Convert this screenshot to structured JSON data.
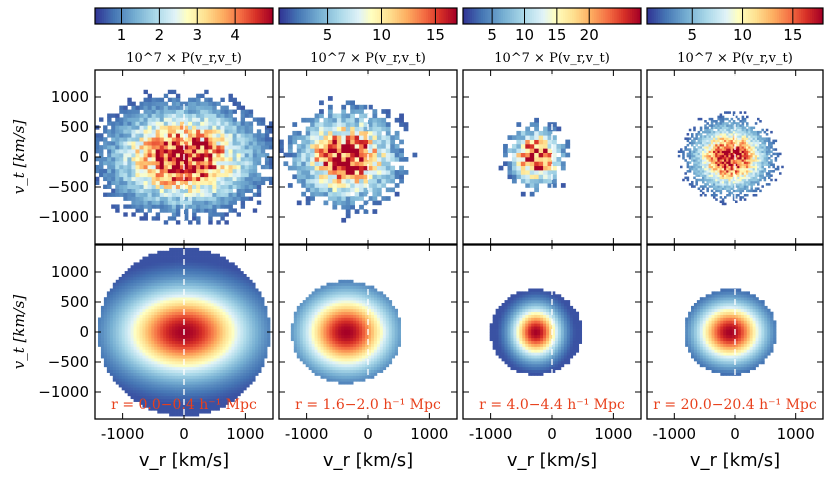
{
  "figure": {
    "xlabel": "v_r  [km/s]",
    "ylabel": "v_t  [km/s]",
    "colorbar_title": "10^7  × P(v_r,v_t)",
    "x_ticks": [
      "-1000",
      "0",
      "1000"
    ],
    "y_ticks": [
      "1000",
      "500",
      "0",
      "−500",
      "−1000"
    ],
    "x_tick_values": [
      -1000,
      0,
      1000
    ],
    "y_tick_values": [
      1000,
      500,
      0,
      -500,
      -1000
    ]
  },
  "chart_data": [
    {
      "type": "heatmap",
      "row": "top",
      "col": 1,
      "kind": "simulation histogram",
      "xlim": [
        -1450,
        1450
      ],
      "ylim": [
        -1450,
        1450
      ],
      "colorbar_ticks": [
        1,
        2,
        3,
        4
      ],
      "colorbar_range": [
        0.3,
        5.0
      ],
      "colorbar_labels": [
        "1",
        "2",
        "3",
        "4"
      ]
    },
    {
      "type": "heatmap",
      "row": "top",
      "col": 2,
      "kind": "simulation histogram",
      "xlim": [
        -1450,
        1450
      ],
      "ylim": [
        -1450,
        1450
      ],
      "colorbar_ticks": [
        5,
        10,
        15
      ],
      "colorbar_range": [
        0.5,
        17.0
      ],
      "colorbar_labels": [
        "5",
        "10",
        "15"
      ]
    },
    {
      "type": "heatmap",
      "row": "top",
      "col": 3,
      "kind": "simulation histogram",
      "xlim": [
        -1450,
        1450
      ],
      "ylim": [
        -1450,
        1450
      ],
      "colorbar_ticks": [
        5,
        10,
        15,
        20
      ],
      "colorbar_range": [
        0.5,
        28.0
      ],
      "colorbar_labels": [
        "5",
        "10",
        "15",
        "20"
      ]
    },
    {
      "type": "heatmap",
      "row": "top",
      "col": 4,
      "kind": "simulation histogram",
      "xlim": [
        -1450,
        1450
      ],
      "ylim": [
        -1450,
        1450
      ],
      "colorbar_ticks": [
        5,
        10,
        15
      ],
      "colorbar_range": [
        0.5,
        18.0
      ],
      "colorbar_labels": [
        "5",
        "10",
        "15"
      ]
    },
    {
      "type": "heatmap",
      "row": "bottom",
      "col": 1,
      "kind": "model",
      "xlim": [
        -1450,
        1450
      ],
      "ylim": [
        -1450,
        1450
      ],
      "annotation": "r = 0.0−0.4 h⁻¹ Mpc"
    },
    {
      "type": "heatmap",
      "row": "bottom",
      "col": 2,
      "kind": "model",
      "xlim": [
        -1450,
        1450
      ],
      "ylim": [
        -1450,
        1450
      ],
      "annotation": "r = 1.6−2.0 h⁻¹ Mpc"
    },
    {
      "type": "heatmap",
      "row": "bottom",
      "col": 3,
      "kind": "model",
      "xlim": [
        -1450,
        1450
      ],
      "ylim": [
        -1450,
        1450
      ],
      "annotation": "r = 4.0−4.4 h⁻¹ Mpc"
    },
    {
      "type": "heatmap",
      "row": "bottom",
      "col": 4,
      "kind": "model",
      "xlim": [
        -1450,
        1450
      ],
      "ylim": [
        -1450,
        1450
      ],
      "annotation": "r = 20.0−20.4 h⁻¹ Mpc"
    }
  ]
}
